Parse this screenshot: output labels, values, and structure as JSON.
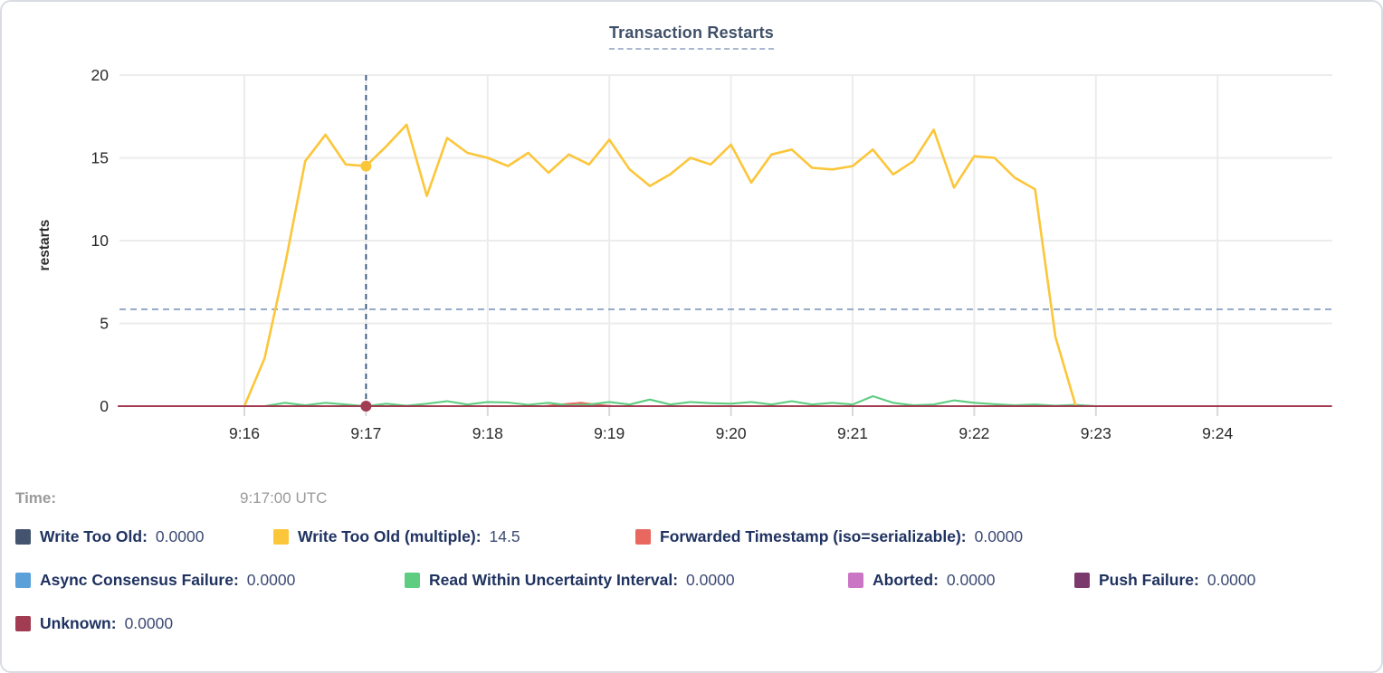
{
  "title": "Transaction Restarts",
  "hover": {
    "time_label": "Time:",
    "time_value": "9:17:00 UTC"
  },
  "chart_data": {
    "type": "line",
    "title": "Transaction Restarts",
    "xlabel": "",
    "ylabel": "restarts",
    "ylim": [
      0,
      20
    ],
    "yticks": [
      0,
      5,
      10,
      15,
      20
    ],
    "xticks": [
      "9:16",
      "9:17",
      "9:18",
      "9:19",
      "9:20",
      "9:21",
      "9:22",
      "9:23",
      "9:24"
    ],
    "x_unit": "seconds since 9:16:00 UTC",
    "grid": true,
    "legend_position": "bottom",
    "mean_line_value": 5.85,
    "hover_time_seconds": 60,
    "hover_series": [
      {
        "name": "write-too-old-multiple",
        "value": 14.5
      },
      {
        "name": "unknown",
        "value": 0
      }
    ],
    "series": [
      {
        "name": "write-too-old",
        "label": "Write Too Old",
        "color": "#44536e",
        "points": [
          [
            -62,
            0
          ],
          [
            536,
            0
          ]
        ]
      },
      {
        "name": "async-consensus-failure",
        "label": "Async Consensus Failure",
        "color": "#5ba0d8",
        "points": [
          [
            -62,
            0
          ],
          [
            536,
            0
          ]
        ]
      },
      {
        "name": "aborted",
        "label": "Aborted",
        "color": "#cb76c4",
        "points": [
          [
            -62,
            0
          ],
          [
            536,
            0
          ]
        ]
      },
      {
        "name": "push-failure",
        "label": "Push Failure",
        "color": "#7c3a6c",
        "points": [
          [
            -62,
            0
          ],
          [
            536,
            0
          ]
        ]
      },
      {
        "name": "forwarded-timestamp",
        "label": "Forwarded Timestamp (iso=serializable)",
        "color": "#e8685f",
        "points": [
          [
            -62,
            0
          ],
          [
            148,
            0
          ],
          [
            158,
            0.12
          ],
          [
            166,
            0.2
          ],
          [
            174,
            0.08
          ],
          [
            182,
            0
          ],
          [
            536,
            0
          ]
        ]
      },
      {
        "name": "read-within-uncertainty-interval",
        "label": "Read Within Uncertainty Interval",
        "color": "#5ecd81",
        "points": [
          [
            0,
            0
          ],
          [
            10,
            0
          ],
          [
            20,
            0.2
          ],
          [
            30,
            0.05
          ],
          [
            40,
            0.2
          ],
          [
            50,
            0.1
          ],
          [
            60,
            0
          ],
          [
            70,
            0.15
          ],
          [
            80,
            0.03
          ],
          [
            90,
            0.15
          ],
          [
            100,
            0.3
          ],
          [
            110,
            0.1
          ],
          [
            120,
            0.25
          ],
          [
            130,
            0.22
          ],
          [
            140,
            0.08
          ],
          [
            150,
            0.2
          ],
          [
            160,
            0.05
          ],
          [
            170,
            0.1
          ],
          [
            180,
            0.25
          ],
          [
            190,
            0.1
          ],
          [
            200,
            0.4
          ],
          [
            210,
            0.1
          ],
          [
            220,
            0.25
          ],
          [
            230,
            0.18
          ],
          [
            240,
            0.15
          ],
          [
            250,
            0.25
          ],
          [
            260,
            0.1
          ],
          [
            270,
            0.3
          ],
          [
            280,
            0.1
          ],
          [
            290,
            0.2
          ],
          [
            300,
            0.1
          ],
          [
            310,
            0.6
          ],
          [
            320,
            0.2
          ],
          [
            330,
            0.05
          ],
          [
            340,
            0.1
          ],
          [
            350,
            0.35
          ],
          [
            360,
            0.2
          ],
          [
            370,
            0.12
          ],
          [
            380,
            0.05
          ],
          [
            390,
            0.1
          ],
          [
            400,
            0.03
          ],
          [
            410,
            0.08
          ],
          [
            420,
            0
          ]
        ]
      },
      {
        "name": "write-too-old-multiple",
        "label": "Write Too Old (multiple)",
        "color": "#fcc63a",
        "points": [
          [
            0,
            0
          ],
          [
            10,
            2.9
          ],
          [
            20,
            8.5
          ],
          [
            30,
            14.8
          ],
          [
            40,
            16.4
          ],
          [
            50,
            14.6
          ],
          [
            60,
            14.5
          ],
          [
            70,
            15.7
          ],
          [
            80,
            17.0
          ],
          [
            90,
            12.7
          ],
          [
            100,
            16.2
          ],
          [
            110,
            15.3
          ],
          [
            120,
            15.0
          ],
          [
            130,
            14.5
          ],
          [
            140,
            15.3
          ],
          [
            150,
            14.1
          ],
          [
            160,
            15.2
          ],
          [
            170,
            14.6
          ],
          [
            180,
            16.1
          ],
          [
            190,
            14.3
          ],
          [
            200,
            13.3
          ],
          [
            210,
            14.0
          ],
          [
            220,
            15.0
          ],
          [
            230,
            14.6
          ],
          [
            240,
            15.8
          ],
          [
            250,
            13.5
          ],
          [
            260,
            15.2
          ],
          [
            270,
            15.5
          ],
          [
            280,
            14.4
          ],
          [
            290,
            14.3
          ],
          [
            300,
            14.5
          ],
          [
            310,
            15.5
          ],
          [
            320,
            14.0
          ],
          [
            330,
            14.8
          ],
          [
            340,
            16.7
          ],
          [
            350,
            13.2
          ],
          [
            360,
            15.1
          ],
          [
            370,
            15.0
          ],
          [
            380,
            13.8
          ],
          [
            390,
            13.1
          ],
          [
            400,
            4.2
          ],
          [
            410,
            0.05
          ]
        ]
      },
      {
        "name": "unknown",
        "label": "Unknown",
        "color": "#a23c52",
        "points": [
          [
            -62,
            0
          ],
          [
            536,
            0
          ]
        ]
      }
    ]
  },
  "legend": {
    "rows": [
      [
        {
          "label": "Write Too Old:",
          "value": "0.0000",
          "color": "#44536e"
        },
        {
          "label": "Write Too Old (multiple):",
          "value": "14.5",
          "color": "#fcc63a"
        },
        {
          "label": "Forwarded Timestamp (iso=serializable):",
          "value": "0.0000",
          "color": "#e8685f"
        }
      ],
      [
        {
          "label": "Async Consensus Failure:",
          "value": "0.0000",
          "color": "#5ba0d8"
        },
        {
          "label": "Read Within Uncertainty Interval:",
          "value": "0.0000",
          "color": "#5ecd81"
        },
        {
          "label": "Aborted:",
          "value": "0.0000",
          "color": "#cb76c4"
        },
        {
          "label": "Push Failure:",
          "value": "0.0000",
          "color": "#7c3a6c"
        }
      ],
      [
        {
          "label": "Unknown:",
          "value": "0.0000",
          "color": "#a23c52"
        }
      ]
    ]
  },
  "colors": {
    "gridline": "#ececec",
    "axis_text": "#2a2a2a",
    "mean_line": "#8fa6c6",
    "hover_line": "#31517a",
    "title": "#3f5068"
  }
}
